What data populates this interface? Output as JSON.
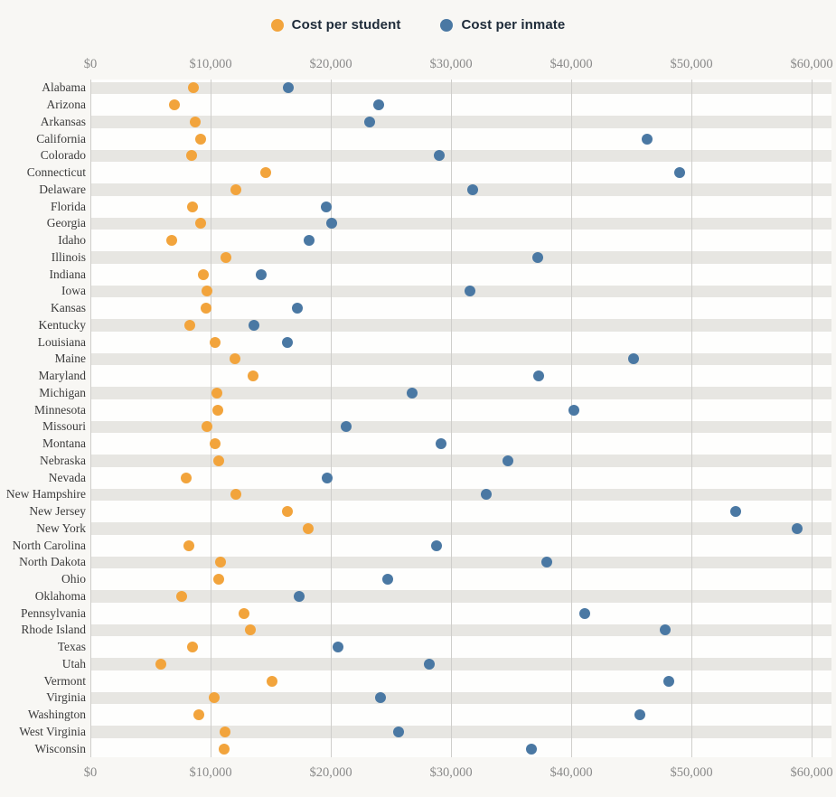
{
  "legend": {
    "items": [
      {
        "label": "Cost per student",
        "color": "#F2A43C"
      },
      {
        "label": "Cost per inmate",
        "color": "#4A78A3"
      }
    ]
  },
  "chart_data": {
    "type": "scatter",
    "title": "",
    "xlabel": "",
    "ylabel": "",
    "x_ticks": [
      0,
      10000,
      20000,
      30000,
      40000,
      50000,
      60000
    ],
    "x_tick_labels": [
      "$0",
      "$10,000",
      "$20,000",
      "$30,000",
      "$40,000",
      "$50,000",
      "$60,000"
    ],
    "x_max": 61650,
    "grid": true,
    "legend_position": "top-center",
    "categories": [
      "Alabama",
      "Arizona",
      "Arkansas",
      "California",
      "Colorado",
      "Connecticut",
      "Delaware",
      "Florida",
      "Georgia",
      "Idaho",
      "Illinois",
      "Indiana",
      "Iowa",
      "Kansas",
      "Kentucky",
      "Louisiana",
      "Maine",
      "Maryland",
      "Michigan",
      "Minnesota",
      "Missouri",
      "Montana",
      "Nebraska",
      "Nevada",
      "New Hampshire",
      "New Jersey",
      "New York",
      "North Carolina",
      "North Dakota",
      "Ohio",
      "Oklahoma",
      "Pennsylvania",
      "Rhode Island",
      "Texas",
      "Utah",
      "Vermont",
      "Virginia",
      "Washington",
      "West Virginia",
      "Wisconsin"
    ],
    "series": [
      {
        "name": "Cost per student",
        "color": "#F2A43C",
        "values": [
          8600,
          7000,
          8700,
          9200,
          8400,
          14600,
          12100,
          8500,
          9200,
          6800,
          11300,
          9400,
          9700,
          9600,
          8300,
          10400,
          12000,
          13500,
          10500,
          10600,
          9700,
          10400,
          10700,
          8000,
          12100,
          16400,
          18100,
          8200,
          10800,
          10700,
          7600,
          12800,
          13300,
          8500,
          5900,
          15100,
          10300,
          9000,
          11200,
          11100
        ]
      },
      {
        "name": "Cost per inmate",
        "color": "#4A78A3",
        "values": [
          16500,
          24000,
          23200,
          46300,
          29000,
          49000,
          31800,
          19600,
          20100,
          18200,
          37200,
          14200,
          31600,
          17200,
          13600,
          16400,
          45200,
          37300,
          26800,
          40200,
          21300,
          29200,
          34700,
          19700,
          32900,
          53700,
          58800,
          28800,
          38000,
          24700,
          17400,
          41100,
          47800,
          20600,
          28200,
          48100,
          24100,
          45700,
          25600,
          36700
        ]
      }
    ]
  }
}
